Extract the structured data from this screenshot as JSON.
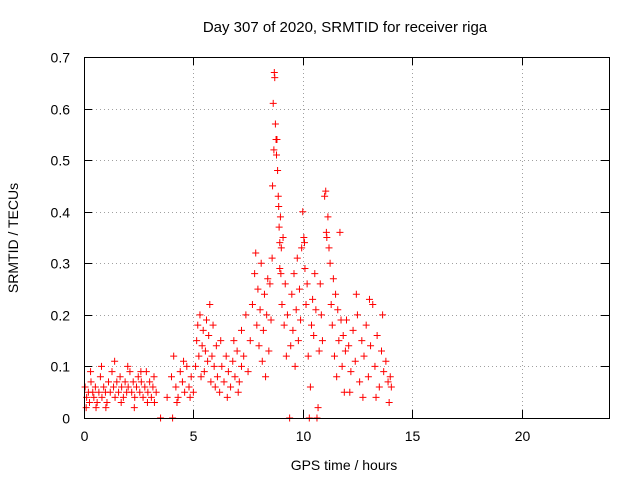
{
  "chart_data": {
    "type": "scatter",
    "title": "Day 307 of 2020, SRMTID for receiver riga",
    "xlabel": "GPS time / hours",
    "ylabel": "SRMTID / TECUs",
    "xlim": [
      0,
      24
    ],
    "ylim": [
      0,
      0.7
    ],
    "xticks": [
      0,
      5,
      10,
      15,
      20
    ],
    "xtick_labels": [
      "0",
      "5",
      "10",
      "15",
      "20"
    ],
    "yticks": [
      0,
      0.1,
      0.2,
      0.3,
      0.4,
      0.5,
      0.6,
      0.7
    ],
    "ytick_labels": [
      "0",
      "0.1",
      "0.2",
      "0.3",
      "0.4",
      "0.5",
      "0.6",
      "0.7"
    ],
    "grid": true,
    "marker": "+",
    "color": "#ff0000",
    "series": [
      {
        "name": "SRMTID",
        "points": [
          [
            0.05,
            0.06
          ],
          [
            0.12,
            0.04
          ],
          [
            0.2,
            0.05
          ],
          [
            0.25,
            0.03
          ],
          [
            0.32,
            0.07
          ],
          [
            0.4,
            0.05
          ],
          [
            0.45,
            0.04
          ],
          [
            0.52,
            0.06
          ],
          [
            0.6,
            0.03
          ],
          [
            0.68,
            0.05
          ],
          [
            0.75,
            0.08
          ],
          [
            0.82,
            0.04
          ],
          [
            0.9,
            0.06
          ],
          [
            0.98,
            0.05
          ],
          [
            1.05,
            0.03
          ],
          [
            1.12,
            0.07
          ],
          [
            1.2,
            0.05
          ],
          [
            1.28,
            0.09
          ],
          [
            1.35,
            0.06
          ],
          [
            1.42,
            0.04
          ],
          [
            1.5,
            0.07
          ],
          [
            1.58,
            0.05
          ],
          [
            1.65,
            0.08
          ],
          [
            1.72,
            0.06
          ],
          [
            1.8,
            0.04
          ],
          [
            1.88,
            0.07
          ],
          [
            1.95,
            0.05
          ],
          [
            2.02,
            0.06
          ],
          [
            2.1,
            0.09
          ],
          [
            2.18,
            0.05
          ],
          [
            2.25,
            0.07
          ],
          [
            2.32,
            0.04
          ],
          [
            2.4,
            0.06
          ],
          [
            2.48,
            0.08
          ],
          [
            2.55,
            0.05
          ],
          [
            2.62,
            0.07
          ],
          [
            2.7,
            0.04
          ],
          [
            2.78,
            0.06
          ],
          [
            2.85,
            0.09
          ],
          [
            2.92,
            0.05
          ],
          [
            3.0,
            0.07
          ],
          [
            3.08,
            0.04
          ],
          [
            3.15,
            0.06
          ],
          [
            3.22,
            0.03
          ],
          [
            3.3,
            0.05
          ],
          [
            0.1,
            0.02
          ],
          [
            0.3,
            0.09
          ],
          [
            0.55,
            0.02
          ],
          [
            0.8,
            0.1
          ],
          [
            1.0,
            0.02
          ],
          [
            1.4,
            0.11
          ],
          [
            1.7,
            0.03
          ],
          [
            2.0,
            0.1
          ],
          [
            2.3,
            0.02
          ],
          [
            2.6,
            0.09
          ],
          [
            2.9,
            0.03
          ],
          [
            3.2,
            0.08
          ],
          [
            3.5,
            0.0
          ],
          [
            3.8,
            0.04
          ],
          [
            4.0,
            0.08
          ],
          [
            4.05,
            0.0
          ],
          [
            4.1,
            0.12
          ],
          [
            4.2,
            0.06
          ],
          [
            4.3,
            0.04
          ],
          [
            4.4,
            0.09
          ],
          [
            4.5,
            0.07
          ],
          [
            4.6,
            0.05
          ],
          [
            4.7,
            0.1
          ],
          [
            4.8,
            0.06
          ],
          [
            4.9,
            0.08
          ],
          [
            5.0,
            0.05
          ],
          [
            4.25,
            0.03
          ],
          [
            4.55,
            0.11
          ],
          [
            4.85,
            0.04
          ],
          [
            5.1,
            0.1
          ],
          [
            5.15,
            0.15
          ],
          [
            5.2,
            0.18
          ],
          [
            5.25,
            0.12
          ],
          [
            5.3,
            0.2
          ],
          [
            5.35,
            0.08
          ],
          [
            5.4,
            0.14
          ],
          [
            5.45,
            0.17
          ],
          [
            5.5,
            0.09
          ],
          [
            5.55,
            0.13
          ],
          [
            5.6,
            0.19
          ],
          [
            5.65,
            0.11
          ],
          [
            5.7,
            0.16
          ],
          [
            5.75,
            0.22
          ],
          [
            5.8,
            0.07
          ],
          [
            5.85,
            0.12
          ],
          [
            5.9,
            0.18
          ],
          [
            5.95,
            0.1
          ],
          [
            6.0,
            0.06
          ],
          [
            6.05,
            0.14
          ],
          [
            6.1,
            0.08
          ],
          [
            6.2,
            0.05
          ],
          [
            6.3,
            0.1
          ],
          [
            6.4,
            0.07
          ],
          [
            6.5,
            0.12
          ],
          [
            6.6,
            0.09
          ],
          [
            6.7,
            0.06
          ],
          [
            6.8,
            0.11
          ],
          [
            6.9,
            0.08
          ],
          [
            7.0,
            0.13
          ],
          [
            7.1,
            0.07
          ],
          [
            7.2,
            0.1
          ],
          [
            6.25,
            0.15
          ],
          [
            6.55,
            0.04
          ],
          [
            6.85,
            0.15
          ],
          [
            7.05,
            0.05
          ],
          [
            7.2,
            0.17
          ],
          [
            7.3,
            0.12
          ],
          [
            7.4,
            0.2
          ],
          [
            7.5,
            0.09
          ],
          [
            7.6,
            0.15
          ],
          [
            7.7,
            0.22
          ],
          [
            7.8,
            0.28
          ],
          [
            7.85,
            0.32
          ],
          [
            7.9,
            0.18
          ],
          [
            7.95,
            0.25
          ],
          [
            8.0,
            0.14
          ],
          [
            8.05,
            0.21
          ],
          [
            8.1,
            0.3
          ],
          [
            8.15,
            0.11
          ],
          [
            8.2,
            0.17
          ],
          [
            8.25,
            0.24
          ],
          [
            8.3,
            0.08
          ],
          [
            8.35,
            0.2
          ],
          [
            8.4,
            0.27
          ],
          [
            8.45,
            0.13
          ],
          [
            8.5,
            0.26
          ],
          [
            8.55,
            0.19
          ],
          [
            8.6,
            0.31
          ],
          [
            8.62,
            0.45
          ],
          [
            8.65,
            0.61
          ],
          [
            8.7,
            0.67
          ],
          [
            8.72,
            0.66
          ],
          [
            8.75,
            0.57
          ],
          [
            8.8,
            0.51
          ],
          [
            8.82,
            0.54
          ],
          [
            8.85,
            0.48
          ],
          [
            8.88,
            0.43
          ],
          [
            8.9,
            0.41
          ],
          [
            8.92,
            0.37
          ],
          [
            8.95,
            0.34
          ],
          [
            8.98,
            0.39
          ],
          [
            9.0,
            0.28
          ],
          [
            9.02,
            0.33
          ],
          [
            8.78,
            0.54
          ],
          [
            8.68,
            0.52
          ],
          [
            8.95,
            0.29
          ],
          [
            9.05,
            0.22
          ],
          [
            9.1,
            0.35
          ],
          [
            9.15,
            0.18
          ],
          [
            9.2,
            0.26
          ],
          [
            9.25,
            0.12
          ],
          [
            9.3,
            0.2
          ],
          [
            9.4,
            0.0
          ],
          [
            9.45,
            0.14
          ],
          [
            9.5,
            0.24
          ],
          [
            9.55,
            0.17
          ],
          [
            9.6,
            0.28
          ],
          [
            9.65,
            0.1
          ],
          [
            9.7,
            0.21
          ],
          [
            9.75,
            0.31
          ],
          [
            9.8,
            0.15
          ],
          [
            9.85,
            0.25
          ],
          [
            9.9,
            0.19
          ],
          [
            9.95,
            0.33
          ],
          [
            10.0,
            0.4
          ],
          [
            10.05,
            0.35
          ],
          [
            10.08,
            0.34
          ],
          [
            10.1,
            0.29
          ],
          [
            10.15,
            0.22
          ],
          [
            10.2,
            0.26
          ],
          [
            10.25,
            0.12
          ],
          [
            10.3,
            0.0
          ],
          [
            10.35,
            0.06
          ],
          [
            10.4,
            0.18
          ],
          [
            10.45,
            0.23
          ],
          [
            10.5,
            0.16
          ],
          [
            10.55,
            0.28
          ],
          [
            10.6,
            0.21
          ],
          [
            10.65,
            0.0
          ],
          [
            10.7,
            0.02
          ],
          [
            10.75,
            0.13
          ],
          [
            10.8,
            0.26
          ],
          [
            10.85,
            0.2
          ],
          [
            10.9,
            0.15
          ],
          [
            11.0,
            0.43
          ],
          [
            11.05,
            0.44
          ],
          [
            11.08,
            0.36
          ],
          [
            11.1,
            0.35
          ],
          [
            11.15,
            0.39
          ],
          [
            11.2,
            0.33
          ],
          [
            11.25,
            0.3
          ],
          [
            11.3,
            0.22
          ],
          [
            11.35,
            0.18
          ],
          [
            11.4,
            0.27
          ],
          [
            11.45,
            0.12
          ],
          [
            11.5,
            0.24
          ],
          [
            11.55,
            0.08
          ],
          [
            11.6,
            0.21
          ],
          [
            11.65,
            0.15
          ],
          [
            11.7,
            0.36
          ],
          [
            11.75,
            0.19
          ],
          [
            11.8,
            0.1
          ],
          [
            11.85,
            0.16
          ],
          [
            11.9,
            0.05
          ],
          [
            11.95,
            0.13
          ],
          [
            12.0,
            0.19
          ],
          [
            12.1,
            0.14
          ],
          [
            12.2,
            0.09
          ],
          [
            12.3,
            0.17
          ],
          [
            12.4,
            0.11
          ],
          [
            12.5,
            0.2
          ],
          [
            12.6,
            0.07
          ],
          [
            12.7,
            0.15
          ],
          [
            12.8,
            0.12
          ],
          [
            12.9,
            0.18
          ],
          [
            13.0,
            0.08
          ],
          [
            13.1,
            0.14
          ],
          [
            13.2,
            0.22
          ],
          [
            13.3,
            0.1
          ],
          [
            13.4,
            0.16
          ],
          [
            13.5,
            0.06
          ],
          [
            13.6,
            0.13
          ],
          [
            13.7,
            0.09
          ],
          [
            13.8,
            0.11
          ],
          [
            13.9,
            0.07
          ],
          [
            14.0,
            0.08
          ],
          [
            14.05,
            0.06
          ],
          [
            12.15,
            0.05
          ],
          [
            12.45,
            0.24
          ],
          [
            12.75,
            0.04
          ],
          [
            13.05,
            0.23
          ],
          [
            13.35,
            0.04
          ],
          [
            13.65,
            0.2
          ],
          [
            13.95,
            0.03
          ]
        ]
      }
    ]
  }
}
